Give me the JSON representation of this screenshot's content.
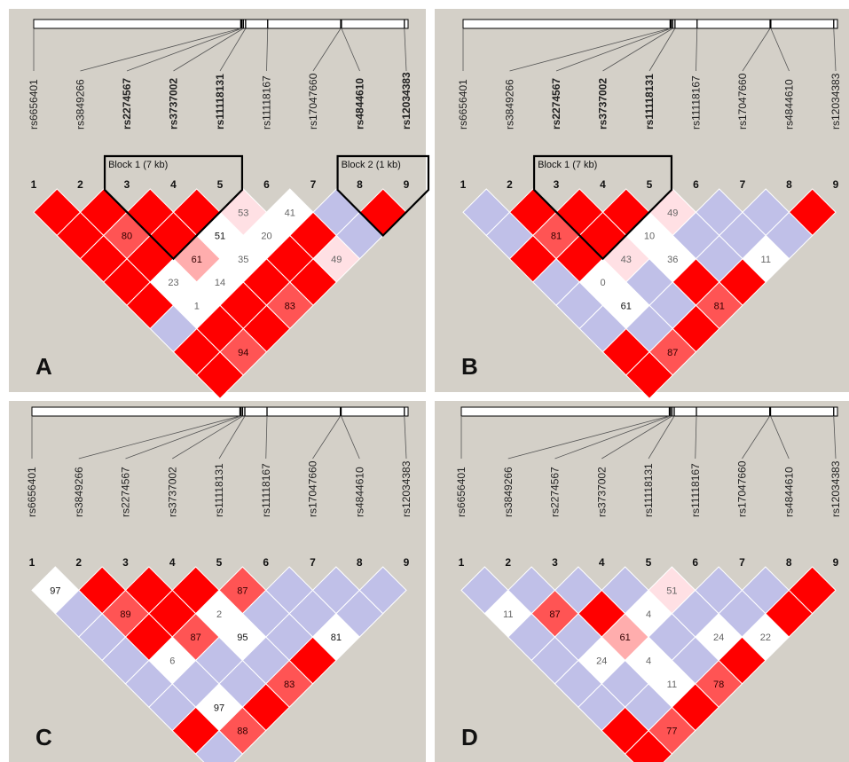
{
  "snp_ids": [
    "rs6656401",
    "rs3849266",
    "rs2274567",
    "rs3737002",
    "rs11118131",
    "rs11118167",
    "rs17047660",
    "rs4844610",
    "rs12034383"
  ],
  "marker_indices": [
    "1",
    "2",
    "3",
    "4",
    "5",
    "6",
    "7",
    "8",
    "9"
  ],
  "colors": {
    "background": "#d4d0c8",
    "strong_ld": "#ff0000",
    "no_ld": "#c0c0e8",
    "weak_ld": "#ffffff",
    "pink_light": "#ffe0e4",
    "pink_mid": "#ffadad",
    "red_mid": "#ff5454",
    "outline": "#000000"
  },
  "panels": [
    {
      "letter": "A",
      "bold_snps": [
        2,
        3,
        4,
        7,
        8
      ],
      "blocks": [
        {
          "label": "Block 1 (7 kb)",
          "from": 2,
          "to": 4
        },
        {
          "label": "Block 2 (1 kb)",
          "from": 7,
          "to": 8
        }
      ],
      "cells": [
        {
          "i": 0,
          "j": 1,
          "c": "red"
        },
        {
          "i": 1,
          "j": 2,
          "c": "red"
        },
        {
          "i": 2,
          "j": 3,
          "c": "red"
        },
        {
          "i": 3,
          "j": 4,
          "c": "red"
        },
        {
          "i": 4,
          "j": 5,
          "c": "pink",
          "v": "53"
        },
        {
          "i": 5,
          "j": 6,
          "c": "white",
          "v": "41"
        },
        {
          "i": 6,
          "j": 7,
          "c": "blue"
        },
        {
          "i": 7,
          "j": 8,
          "c": "red"
        },
        {
          "i": 0,
          "j": 2,
          "c": "red"
        },
        {
          "i": 1,
          "j": 3,
          "c": "mid",
          "v": "80"
        },
        {
          "i": 2,
          "j": 4,
          "c": "red"
        },
        {
          "i": 3,
          "j": 5,
          "c": "white",
          "v": "51"
        },
        {
          "i": 4,
          "j": 6,
          "c": "white",
          "v": "20"
        },
        {
          "i": 5,
          "j": 7,
          "c": "red"
        },
        {
          "i": 6,
          "j": 8,
          "c": "blue"
        },
        {
          "i": 0,
          "j": 3,
          "c": "red"
        },
        {
          "i": 1,
          "j": 4,
          "c": "red"
        },
        {
          "i": 2,
          "j": 5,
          "c": "pinkmid",
          "v": "61"
        },
        {
          "i": 3,
          "j": 6,
          "c": "white",
          "v": "35"
        },
        {
          "i": 4,
          "j": 7,
          "c": "red"
        },
        {
          "i": 5,
          "j": 8,
          "c": "pink",
          "v": "49"
        },
        {
          "i": 0,
          "j": 4,
          "c": "red"
        },
        {
          "i": 1,
          "j": 5,
          "c": "white",
          "v": "23"
        },
        {
          "i": 2,
          "j": 6,
          "c": "white",
          "v": "14"
        },
        {
          "i": 3,
          "j": 7,
          "c": "red"
        },
        {
          "i": 4,
          "j": 8,
          "c": "red"
        },
        {
          "i": 0,
          "j": 5,
          "c": "red"
        },
        {
          "i": 1,
          "j": 6,
          "c": "white",
          "v": "1"
        },
        {
          "i": 2,
          "j": 7,
          "c": "red"
        },
        {
          "i": 3,
          "j": 8,
          "c": "mid",
          "v": "83"
        },
        {
          "i": 0,
          "j": 6,
          "c": "blue"
        },
        {
          "i": 1,
          "j": 7,
          "c": "red"
        },
        {
          "i": 2,
          "j": 8,
          "c": "red"
        },
        {
          "i": 0,
          "j": 7,
          "c": "red"
        },
        {
          "i": 1,
          "j": 8,
          "c": "mid",
          "v": "94"
        },
        {
          "i": 0,
          "j": 8,
          "c": "red"
        }
      ]
    },
    {
      "letter": "B",
      "bold_snps": [
        2,
        3,
        4
      ],
      "blocks": [
        {
          "label": "Block 1 (7 kb)",
          "from": 2,
          "to": 4
        }
      ],
      "cells": [
        {
          "i": 0,
          "j": 1,
          "c": "blue"
        },
        {
          "i": 1,
          "j": 2,
          "c": "red"
        },
        {
          "i": 2,
          "j": 3,
          "c": "red"
        },
        {
          "i": 3,
          "j": 4,
          "c": "red"
        },
        {
          "i": 4,
          "j": 5,
          "c": "pink",
          "v": "49"
        },
        {
          "i": 5,
          "j": 6,
          "c": "blue"
        },
        {
          "i": 6,
          "j": 7,
          "c": "blue"
        },
        {
          "i": 7,
          "j": 8,
          "c": "red"
        },
        {
          "i": 0,
          "j": 2,
          "c": "blue"
        },
        {
          "i": 1,
          "j": 3,
          "c": "mid",
          "v": "81"
        },
        {
          "i": 2,
          "j": 4,
          "c": "red"
        },
        {
          "i": 3,
          "j": 5,
          "c": "white",
          "v": "10"
        },
        {
          "i": 4,
          "j": 6,
          "c": "blue"
        },
        {
          "i": 5,
          "j": 7,
          "c": "blue"
        },
        {
          "i": 6,
          "j": 8,
          "c": "blue"
        },
        {
          "i": 0,
          "j": 3,
          "c": "red"
        },
        {
          "i": 1,
          "j": 4,
          "c": "red"
        },
        {
          "i": 2,
          "j": 5,
          "c": "pink",
          "v": "43"
        },
        {
          "i": 3,
          "j": 6,
          "c": "white",
          "v": "36"
        },
        {
          "i": 4,
          "j": 7,
          "c": "blue"
        },
        {
          "i": 5,
          "j": 8,
          "c": "white",
          "v": "11"
        },
        {
          "i": 0,
          "j": 4,
          "c": "blue"
        },
        {
          "i": 1,
          "j": 5,
          "c": "white",
          "v": "0"
        },
        {
          "i": 2,
          "j": 6,
          "c": "blue"
        },
        {
          "i": 3,
          "j": 7,
          "c": "red"
        },
        {
          "i": 4,
          "j": 8,
          "c": "red"
        },
        {
          "i": 0,
          "j": 5,
          "c": "blue"
        },
        {
          "i": 1,
          "j": 6,
          "c": "white",
          "v": "61"
        },
        {
          "i": 2,
          "j": 7,
          "c": "blue"
        },
        {
          "i": 3,
          "j": 8,
          "c": "mid",
          "v": "81"
        },
        {
          "i": 0,
          "j": 6,
          "c": "blue"
        },
        {
          "i": 1,
          "j": 7,
          "c": "blue"
        },
        {
          "i": 2,
          "j": 8,
          "c": "red"
        },
        {
          "i": 0,
          "j": 7,
          "c": "red"
        },
        {
          "i": 1,
          "j": 8,
          "c": "mid",
          "v": "87"
        },
        {
          "i": 0,
          "j": 8,
          "c": "red"
        }
      ]
    },
    {
      "letter": "C",
      "bold_snps": [],
      "blocks": [],
      "cells": [
        {
          "i": 0,
          "j": 1,
          "c": "white",
          "v": "97"
        },
        {
          "i": 1,
          "j": 2,
          "c": "red"
        },
        {
          "i": 2,
          "j": 3,
          "c": "red"
        },
        {
          "i": 3,
          "j": 4,
          "c": "red"
        },
        {
          "i": 4,
          "j": 5,
          "c": "mid",
          "v": "87"
        },
        {
          "i": 5,
          "j": 6,
          "c": "blue"
        },
        {
          "i": 6,
          "j": 7,
          "c": "blue"
        },
        {
          "i": 7,
          "j": 8,
          "c": "blue"
        },
        {
          "i": 0,
          "j": 2,
          "c": "blue"
        },
        {
          "i": 1,
          "j": 3,
          "c": "mid",
          "v": "89"
        },
        {
          "i": 2,
          "j": 4,
          "c": "red"
        },
        {
          "i": 3,
          "j": 5,
          "c": "white",
          "v": "2"
        },
        {
          "i": 4,
          "j": 6,
          "c": "blue"
        },
        {
          "i": 5,
          "j": 7,
          "c": "blue"
        },
        {
          "i": 6,
          "j": 8,
          "c": "blue"
        },
        {
          "i": 0,
          "j": 3,
          "c": "blue"
        },
        {
          "i": 1,
          "j": 4,
          "c": "red"
        },
        {
          "i": 2,
          "j": 5,
          "c": "mid",
          "v": "87"
        },
        {
          "i": 3,
          "j": 6,
          "c": "white",
          "v": "95"
        },
        {
          "i": 4,
          "j": 7,
          "c": "blue"
        },
        {
          "i": 5,
          "j": 8,
          "c": "white",
          "v": "81"
        },
        {
          "i": 0,
          "j": 4,
          "c": "blue"
        },
        {
          "i": 1,
          "j": 5,
          "c": "white",
          "v": "6"
        },
        {
          "i": 2,
          "j": 6,
          "c": "blue"
        },
        {
          "i": 3,
          "j": 7,
          "c": "blue"
        },
        {
          "i": 4,
          "j": 8,
          "c": "red"
        },
        {
          "i": 0,
          "j": 5,
          "c": "blue"
        },
        {
          "i": 1,
          "j": 6,
          "c": "blue"
        },
        {
          "i": 2,
          "j": 7,
          "c": "blue"
        },
        {
          "i": 3,
          "j": 8,
          "c": "mid",
          "v": "83"
        },
        {
          "i": 0,
          "j": 6,
          "c": "blue"
        },
        {
          "i": 1,
          "j": 7,
          "c": "white",
          "v": "97"
        },
        {
          "i": 2,
          "j": 8,
          "c": "red"
        },
        {
          "i": 0,
          "j": 7,
          "c": "red"
        },
        {
          "i": 1,
          "j": 8,
          "c": "mid",
          "v": "88"
        },
        {
          "i": 0,
          "j": 8,
          "c": "blue"
        }
      ]
    },
    {
      "letter": "D",
      "bold_snps": [],
      "blocks": [],
      "cells": [
        {
          "i": 0,
          "j": 1,
          "c": "blue"
        },
        {
          "i": 1,
          "j": 2,
          "c": "blue"
        },
        {
          "i": 2,
          "j": 3,
          "c": "blue"
        },
        {
          "i": 3,
          "j": 4,
          "c": "blue"
        },
        {
          "i": 4,
          "j": 5,
          "c": "pink",
          "v": "51"
        },
        {
          "i": 5,
          "j": 6,
          "c": "blue"
        },
        {
          "i": 6,
          "j": 7,
          "c": "blue"
        },
        {
          "i": 7,
          "j": 8,
          "c": "red"
        },
        {
          "i": 0,
          "j": 2,
          "c": "white",
          "v": "11"
        },
        {
          "i": 1,
          "j": 3,
          "c": "mid",
          "v": "87"
        },
        {
          "i": 2,
          "j": 4,
          "c": "red"
        },
        {
          "i": 3,
          "j": 5,
          "c": "white",
          "v": "4"
        },
        {
          "i": 4,
          "j": 6,
          "c": "blue"
        },
        {
          "i": 5,
          "j": 7,
          "c": "blue"
        },
        {
          "i": 6,
          "j": 8,
          "c": "red"
        },
        {
          "i": 0,
          "j": 3,
          "c": "blue"
        },
        {
          "i": 1,
          "j": 4,
          "c": "blue"
        },
        {
          "i": 2,
          "j": 5,
          "c": "pinkmid",
          "v": "61"
        },
        {
          "i": 3,
          "j": 6,
          "c": "blue"
        },
        {
          "i": 4,
          "j": 7,
          "c": "white",
          "v": "24"
        },
        {
          "i": 5,
          "j": 8,
          "c": "white",
          "v": "22"
        },
        {
          "i": 0,
          "j": 4,
          "c": "blue"
        },
        {
          "i": 1,
          "j": 5,
          "c": "white",
          "v": "24"
        },
        {
          "i": 2,
          "j": 6,
          "c": "white",
          "v": "4"
        },
        {
          "i": 3,
          "j": 7,
          "c": "blue"
        },
        {
          "i": 4,
          "j": 8,
          "c": "red"
        },
        {
          "i": 0,
          "j": 5,
          "c": "blue"
        },
        {
          "i": 1,
          "j": 6,
          "c": "blue"
        },
        {
          "i": 2,
          "j": 7,
          "c": "white",
          "v": "11"
        },
        {
          "i": 3,
          "j": 8,
          "c": "mid",
          "v": "78"
        },
        {
          "i": 0,
          "j": 6,
          "c": "blue"
        },
        {
          "i": 1,
          "j": 7,
          "c": "blue"
        },
        {
          "i": 2,
          "j": 8,
          "c": "red"
        },
        {
          "i": 0,
          "j": 7,
          "c": "red"
        },
        {
          "i": 1,
          "j": 8,
          "c": "mid",
          "v": "77"
        },
        {
          "i": 0,
          "j": 8,
          "c": "red"
        }
      ]
    }
  ]
}
